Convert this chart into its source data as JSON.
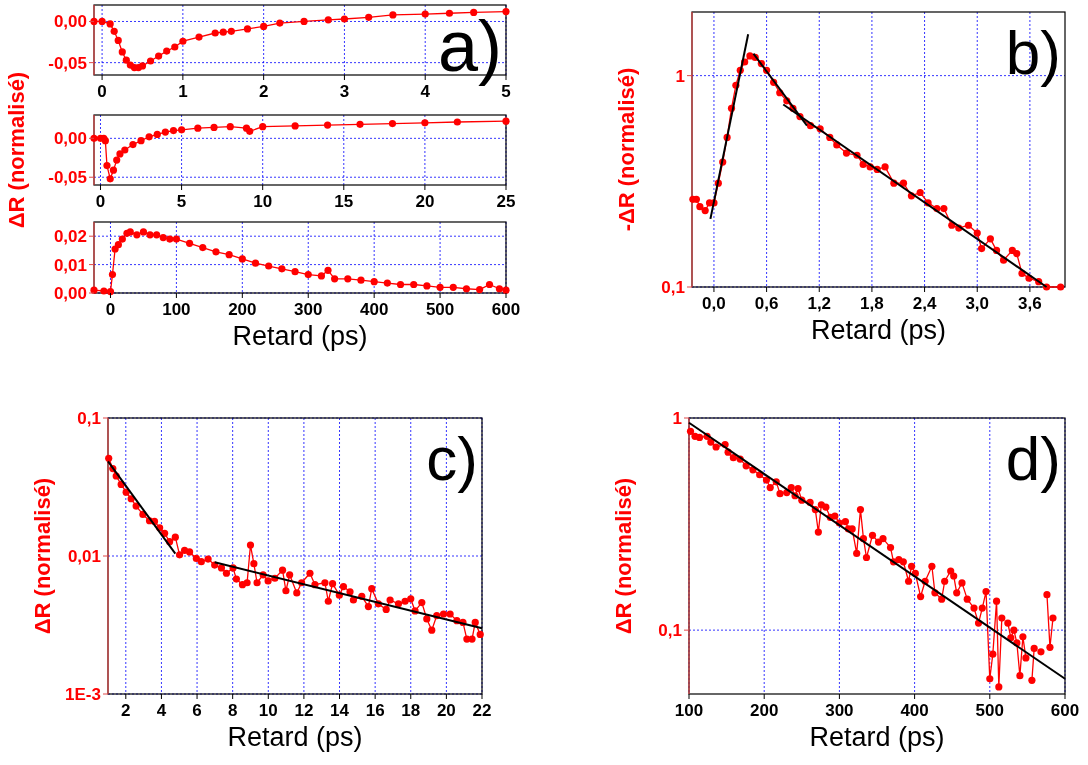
{
  "chart_data": [
    {
      "type": "line",
      "marker": "circle",
      "line_style": "solid",
      "grid": true,
      "xlim": [
        -0.1,
        5
      ],
      "ylim": [
        -0.065,
        0.02
      ],
      "xticks": [
        0,
        1,
        2,
        3,
        4,
        5
      ],
      "yticks": [
        {
          "value": 0,
          "label": "0,00"
        },
        {
          "value": -0.05,
          "label": "-0,05"
        }
      ],
      "annotations": [
        "a)"
      ],
      "series": [
        {
          "color": "#ff0000",
          "x": [
            -0.1,
            0,
            0.1,
            0.15,
            0.2,
            0.25,
            0.3,
            0.35,
            0.4,
            0.45,
            0.5,
            0.6,
            0.7,
            0.8,
            0.9,
            1.0,
            1.2,
            1.4,
            1.5,
            1.6,
            1.8,
            2.0,
            2.2,
            2.5,
            2.8,
            3.0,
            3.3,
            3.6,
            4.0,
            4.3,
            4.6,
            5.0
          ],
          "values": [
            0,
            0,
            -0.003,
            -0.012,
            -0.023,
            -0.037,
            -0.047,
            -0.053,
            -0.056,
            -0.056,
            -0.054,
            -0.048,
            -0.042,
            -0.036,
            -0.031,
            -0.024,
            -0.019,
            -0.014,
            -0.013,
            -0.012,
            -0.009,
            -0.006,
            -0.002,
            0,
            0.002,
            0.003,
            0.005,
            0.008,
            0.009,
            0.01,
            0.011,
            0.012
          ]
        }
      ]
    },
    {
      "type": "line",
      "marker": "circle",
      "line_style": "solid",
      "grid": true,
      "ylabel": "ΔR (normalisé)",
      "xlim": [
        -0.4,
        25
      ],
      "ylim": [
        -0.06,
        0.03
      ],
      "xticks": [
        0,
        5,
        10,
        15,
        20,
        25
      ],
      "yticks": [
        {
          "value": 0,
          "label": "0,00"
        },
        {
          "value": -0.05,
          "label": "-0,05"
        }
      ],
      "series": [
        {
          "color": "#ff0000",
          "x": [
            -0.4,
            0,
            0.2,
            0.3,
            0.4,
            0.6,
            0.8,
            1.0,
            1.2,
            1.5,
            2.0,
            2.5,
            3,
            3.5,
            4,
            4.5,
            5,
            6,
            7,
            8,
            9,
            9.2,
            10,
            12,
            14,
            16,
            18,
            20,
            22,
            25
          ],
          "values": [
            0,
            0,
            0,
            -0.003,
            -0.035,
            -0.052,
            -0.041,
            -0.028,
            -0.02,
            -0.015,
            -0.008,
            -0.003,
            0.002,
            0.005,
            0.008,
            0.01,
            0.011,
            0.013,
            0.014,
            0.015,
            0.013,
            0.009,
            0.015,
            0.016,
            0.017,
            0.018,
            0.019,
            0.02,
            0.021,
            0.022
          ]
        }
      ]
    },
    {
      "type": "line",
      "marker": "circle",
      "line_style": "solid",
      "grid": true,
      "xlabel": "Retard (ps)",
      "xlim": [
        -25,
        600
      ],
      "ylim": [
        0,
        0.025
      ],
      "xticks": [
        0,
        100,
        200,
        300,
        400,
        500,
        600
      ],
      "yticks": [
        {
          "value": 0,
          "label": "0,00"
        },
        {
          "value": 0.01,
          "label": "0,01"
        },
        {
          "value": 0.02,
          "label": "0,02"
        }
      ],
      "series": [
        {
          "color": "#ff0000",
          "x": [
            -25,
            -10,
            0,
            3,
            7,
            12,
            18,
            25,
            30,
            40,
            50,
            60,
            70,
            80,
            90,
            100,
            120,
            140,
            160,
            180,
            200,
            220,
            240,
            260,
            280,
            300,
            320,
            330,
            340,
            360,
            380,
            400,
            420,
            440,
            460,
            480,
            500,
            520,
            540,
            560,
            575,
            590,
            600
          ],
          "values": [
            0.001,
            0.0007,
            0.0005,
            0.0065,
            0.0155,
            0.017,
            0.019,
            0.021,
            0.0215,
            0.0205,
            0.0215,
            0.0205,
            0.0205,
            0.0195,
            0.019,
            0.019,
            0.0175,
            0.016,
            0.0145,
            0.0135,
            0.012,
            0.0105,
            0.0095,
            0.0085,
            0.0075,
            0.0065,
            0.006,
            0.008,
            0.005,
            0.005,
            0.0045,
            0.004,
            0.0035,
            0.003,
            0.003,
            0.0025,
            0.002,
            0.002,
            0.0015,
            0.0012,
            0.003,
            0.0015,
            0.001
          ]
        }
      ]
    },
    {
      "type": "line",
      "marker": "circle",
      "line_style": "solid",
      "grid": true,
      "log": "y",
      "xlabel": "Retard (ps)",
      "ylabel": "-ΔR (normalisé)",
      "xlim": [
        -0.25,
        4
      ],
      "ylim": [
        0.1,
        2
      ],
      "xticks": [
        {
          "value": 0,
          "label": "0,0"
        },
        {
          "value": 0.6,
          "label": "0,6"
        },
        {
          "value": 1.2,
          "label": "1,2"
        },
        {
          "value": 1.8,
          "label": "1,8"
        },
        {
          "value": 2.4,
          "label": "2,4"
        },
        {
          "value": 3.0,
          "label": "3,0"
        },
        {
          "value": 3.6,
          "label": "3,6"
        }
      ],
      "yticks": [
        {
          "value": 0.1,
          "label": "0,1"
        },
        1
      ],
      "annotations": [
        "b)"
      ],
      "series": [
        {
          "color": "#ff0000",
          "x": [
            -0.24,
            -0.2,
            -0.16,
            -0.1,
            -0.05,
            0,
            0.05,
            0.1,
            0.15,
            0.2,
            0.25,
            0.3,
            0.35,
            0.41,
            0.47,
            0.54,
            0.6,
            0.68,
            0.75,
            0.83,
            0.9,
            0.98,
            1.1,
            1.21,
            1.32,
            1.4,
            1.51,
            1.63,
            1.7,
            1.78,
            1.86,
            1.95,
            2.05,
            2.16,
            2.25,
            2.35,
            2.44,
            2.54,
            2.62,
            2.71,
            2.79,
            2.9,
            3.0,
            3.05,
            3.15,
            3.22,
            3.3,
            3.4,
            3.45,
            3.51,
            3.59,
            3.7,
            3.79,
            3.95
          ],
          "values": [
            0.26,
            0.26,
            0.24,
            0.23,
            0.25,
            0.25,
            0.31,
            0.39,
            0.51,
            0.7,
            0.9,
            1.06,
            1.16,
            1.24,
            1.22,
            1.14,
            1.06,
            0.93,
            0.83,
            0.76,
            0.7,
            0.64,
            0.58,
            0.56,
            0.51,
            0.47,
            0.43,
            0.42,
            0.38,
            0.37,
            0.36,
            0.37,
            0.31,
            0.31,
            0.27,
            0.28,
            0.25,
            0.235,
            0.235,
            0.196,
            0.19,
            0.196,
            0.18,
            0.152,
            0.169,
            0.149,
            0.134,
            0.149,
            0.144,
            0.116,
            0.11,
            0.106,
            0.1,
            0.1
          ]
        },
        {
          "type": "line",
          "marker": "none",
          "color": "#000000",
          "x": [
            -0.04,
            0.39
          ],
          "values": [
            0.21,
            1.57
          ]
        },
        {
          "type": "line",
          "marker": "none",
          "color": "#000000",
          "x": [
            0.45,
            1.06
          ],
          "values": [
            1.27,
            0.58
          ]
        },
        {
          "type": "line",
          "marker": "none",
          "color": "#000000",
          "x": [
            0.79,
            3.79
          ],
          "values": [
            0.73,
            0.1
          ]
        }
      ]
    },
    {
      "type": "line",
      "marker": "circle",
      "line_style": "solid",
      "grid": true,
      "log": "y",
      "xlabel": "Retard (ps)",
      "ylabel": "ΔR (normalisé)",
      "xlim": [
        1,
        22
      ],
      "ylim": [
        0.001,
        0.1
      ],
      "xticks": [
        2,
        4,
        6,
        8,
        10,
        12,
        14,
        16,
        18,
        20,
        22
      ],
      "yticks": [
        {
          "value": 0.001,
          "label": "1E-3"
        },
        {
          "value": 0.01,
          "label": "0,01"
        },
        {
          "value": 0.1,
          "label": "0,1"
        }
      ],
      "annotations": [
        "c)"
      ],
      "series": [
        {
          "color": "#ff0000",
          "x": [
            1.04,
            1.27,
            1.46,
            1.74,
            2.02,
            2.3,
            2.58,
            2.96,
            3.33,
            3.61,
            3.9,
            4.18,
            4.46,
            4.78,
            5.02,
            5.3,
            5.58,
            5.96,
            6.24,
            6.62,
            6.99,
            7.37,
            7.65,
            8.02,
            8.21,
            8.55,
            8.81,
            9.0,
            9.19,
            9.37,
            9.71,
            9.99,
            10.37,
            10.8,
            10.99,
            11.2,
            11.6,
            11.87,
            12.34,
            12.62,
            13.18,
            13.37,
            13.61,
            13.99,
            14.22,
            14.59,
            14.78,
            15.25,
            15.62,
            15.81,
            16.18,
            16.62,
            16.84,
            17.31,
            17.68,
            18.0,
            18.24,
            18.62,
            18.9,
            19.18,
            19.46,
            19.84,
            20.21,
            20.59,
            20.93,
            21.15,
            21.44,
            21.62,
            21.9
          ],
          "values": [
            0.051,
            0.043,
            0.038,
            0.033,
            0.029,
            0.026,
            0.023,
            0.02,
            0.018,
            0.0178,
            0.016,
            0.0146,
            0.0127,
            0.0137,
            0.0102,
            0.011,
            0.0107,
            0.0096,
            0.0091,
            0.0095,
            0.0086,
            0.0082,
            0.0075,
            0.0082,
            0.0068,
            0.0062,
            0.0064,
            0.012,
            0.0088,
            0.0064,
            0.0073,
            0.0066,
            0.0069,
            0.0079,
            0.0056,
            0.0073,
            0.0054,
            0.0064,
            0.0075,
            0.0062,
            0.0064,
            0.0047,
            0.0063,
            0.0052,
            0.006,
            0.0055,
            0.0048,
            0.0051,
            0.0043,
            0.0058,
            0.0045,
            0.0041,
            0.0048,
            0.0045,
            0.0047,
            0.0049,
            0.004,
            0.0046,
            0.0035,
            0.0029,
            0.0037,
            0.0038,
            0.0038,
            0.0034,
            0.0033,
            0.0025,
            0.0025,
            0.0033,
            0.0027
          ]
        },
        {
          "type": "line",
          "marker": "none",
          "color": "#000000",
          "x": [
            1.0,
            4.78
          ],
          "values": [
            0.0485,
            0.0104
          ]
        },
        {
          "type": "line",
          "marker": "none",
          "color": "#000000",
          "x": [
            6.99,
            22
          ],
          "values": [
            0.009,
            0.003
          ]
        }
      ]
    },
    {
      "type": "line",
      "marker": "circle",
      "line_style": "solid",
      "grid": true,
      "log": "y",
      "xlabel": "Retard (ps)",
      "ylabel": "ΔR (normalisé)",
      "xlim": [
        100,
        600
      ],
      "ylim": [
        0.05,
        1
      ],
      "xticks": [
        100,
        200,
        300,
        400,
        500,
        600
      ],
      "yticks": [
        {
          "value": 0.1,
          "label": "0,1"
        },
        1
      ],
      "annotations": [
        "d)"
      ],
      "series": [
        {
          "color": "#ff0000",
          "x": [
            102,
            108,
            114,
            124,
            129,
            136,
            148,
            152,
            159,
            168,
            176,
            185,
            194,
            203,
            208,
            216,
            221,
            230,
            236,
            241,
            245,
            250,
            261,
            268,
            272,
            276,
            282,
            288,
            294,
            300,
            308,
            312,
            317,
            323,
            328,
            332,
            336,
            344,
            352,
            358,
            368,
            372,
            379,
            385,
            392,
            396,
            401,
            408,
            414,
            423,
            427,
            436,
            440,
            448,
            452,
            456,
            463,
            470,
            479,
            485,
            490,
            495,
            500,
            504,
            509,
            512,
            516,
            521,
            524,
            528,
            532,
            536,
            540,
            544,
            548,
            552,
            556,
            559,
            564,
            568,
            572,
            576,
            580,
            584
          ],
          "values": [
            0.865,
            0.82,
            0.81,
            0.82,
            0.77,
            0.73,
            0.75,
            0.69,
            0.65,
            0.64,
            0.595,
            0.57,
            0.54,
            0.51,
            0.47,
            0.5,
            0.44,
            0.445,
            0.47,
            0.43,
            0.465,
            0.41,
            0.4,
            0.37,
            0.29,
            0.39,
            0.38,
            0.34,
            0.345,
            0.32,
            0.325,
            0.3,
            0.3,
            0.23,
            0.37,
            0.27,
            0.22,
            0.28,
            0.26,
            0.27,
            0.245,
            0.21,
            0.215,
            0.21,
            0.17,
            0.2,
            0.185,
            0.144,
            0.17,
            0.2,
            0.15,
            0.14,
            0.17,
            0.19,
            0.18,
            0.15,
            0.167,
            0.14,
            0.127,
            0.108,
            0.127,
            0.152,
            0.059,
            0.077,
            0.137,
            0.054,
            0.114,
            null,
            0.108,
            0.092,
            0.1,
            0.087,
            0.061,
            0.093,
            0.074,
            null,
            0.058,
            0.082,
            null,
            0.079,
            null,
            0.147,
            0.083,
            0.114
          ]
        },
        {
          "type": "line",
          "marker": "none",
          "color": "#000000",
          "x": [
            100,
            600
          ],
          "values": [
            0.95,
            0.059
          ]
        }
      ]
    }
  ]
}
